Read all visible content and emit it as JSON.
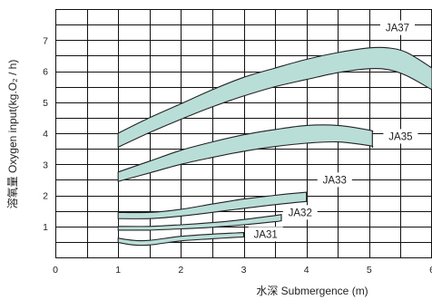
{
  "chart_data": {
    "type": "area",
    "title": "",
    "xlabel": "水深  Submergence (m)",
    "ylabel": "溶氧量 Oxygen input(kg.O₂ / h)",
    "xlim": [
      0,
      6
    ],
    "ylim": [
      0,
      8
    ],
    "xticks": [
      "0",
      "1",
      "2",
      "3",
      "4",
      "5",
      "6"
    ],
    "yticks": [
      "1",
      "2",
      "3",
      "4",
      "5",
      "6",
      "7"
    ],
    "grid": true,
    "band_color": "#b9ddd7",
    "series": [
      {
        "name": "JA37",
        "x": [
          1,
          1.5,
          2,
          2.5,
          3,
          3.5,
          4,
          4.5,
          5,
          5.3,
          5.6,
          6
        ],
        "upper": [
          4.0,
          4.5,
          4.95,
          5.4,
          5.8,
          6.1,
          6.38,
          6.6,
          6.75,
          6.75,
          6.6,
          6.1
        ],
        "lower": [
          3.55,
          4.02,
          4.45,
          4.85,
          5.2,
          5.5,
          5.73,
          5.95,
          6.08,
          6.05,
          5.85,
          5.4
        ]
      },
      {
        "name": "JA35",
        "x": [
          1,
          1.5,
          2,
          2.5,
          3,
          3.5,
          4,
          4.5,
          5,
          5.05
        ],
        "upper": [
          2.75,
          3.1,
          3.45,
          3.72,
          3.95,
          4.12,
          4.25,
          4.25,
          4.1,
          4.05
        ],
        "lower": [
          2.45,
          2.72,
          3.0,
          3.22,
          3.42,
          3.57,
          3.68,
          3.72,
          3.6,
          3.55
        ]
      },
      {
        "name": "JA33",
        "x": [
          1,
          1.5,
          2,
          2.5,
          3,
          3.5,
          4
        ],
        "upper": [
          1.45,
          1.45,
          1.55,
          1.72,
          1.88,
          2.0,
          2.1
        ],
        "lower": [
          1.25,
          1.25,
          1.33,
          1.45,
          1.58,
          1.7,
          1.8
        ]
      },
      {
        "name": "JA32",
        "x": [
          1,
          1.5,
          2,
          2.5,
          3,
          3.5,
          3.6
        ],
        "upper": [
          1.0,
          1.0,
          1.05,
          1.12,
          1.22,
          1.35,
          1.38
        ],
        "lower": [
          0.88,
          0.88,
          0.92,
          0.97,
          1.05,
          1.15,
          1.18
        ]
      },
      {
        "name": "JA31",
        "x": [
          1,
          1.25,
          1.5,
          2,
          2.5,
          3
        ],
        "upper": [
          0.62,
          0.55,
          0.55,
          0.68,
          0.75,
          0.8
        ],
        "lower": [
          0.48,
          0.4,
          0.4,
          0.53,
          0.6,
          0.66
        ]
      }
    ]
  }
}
